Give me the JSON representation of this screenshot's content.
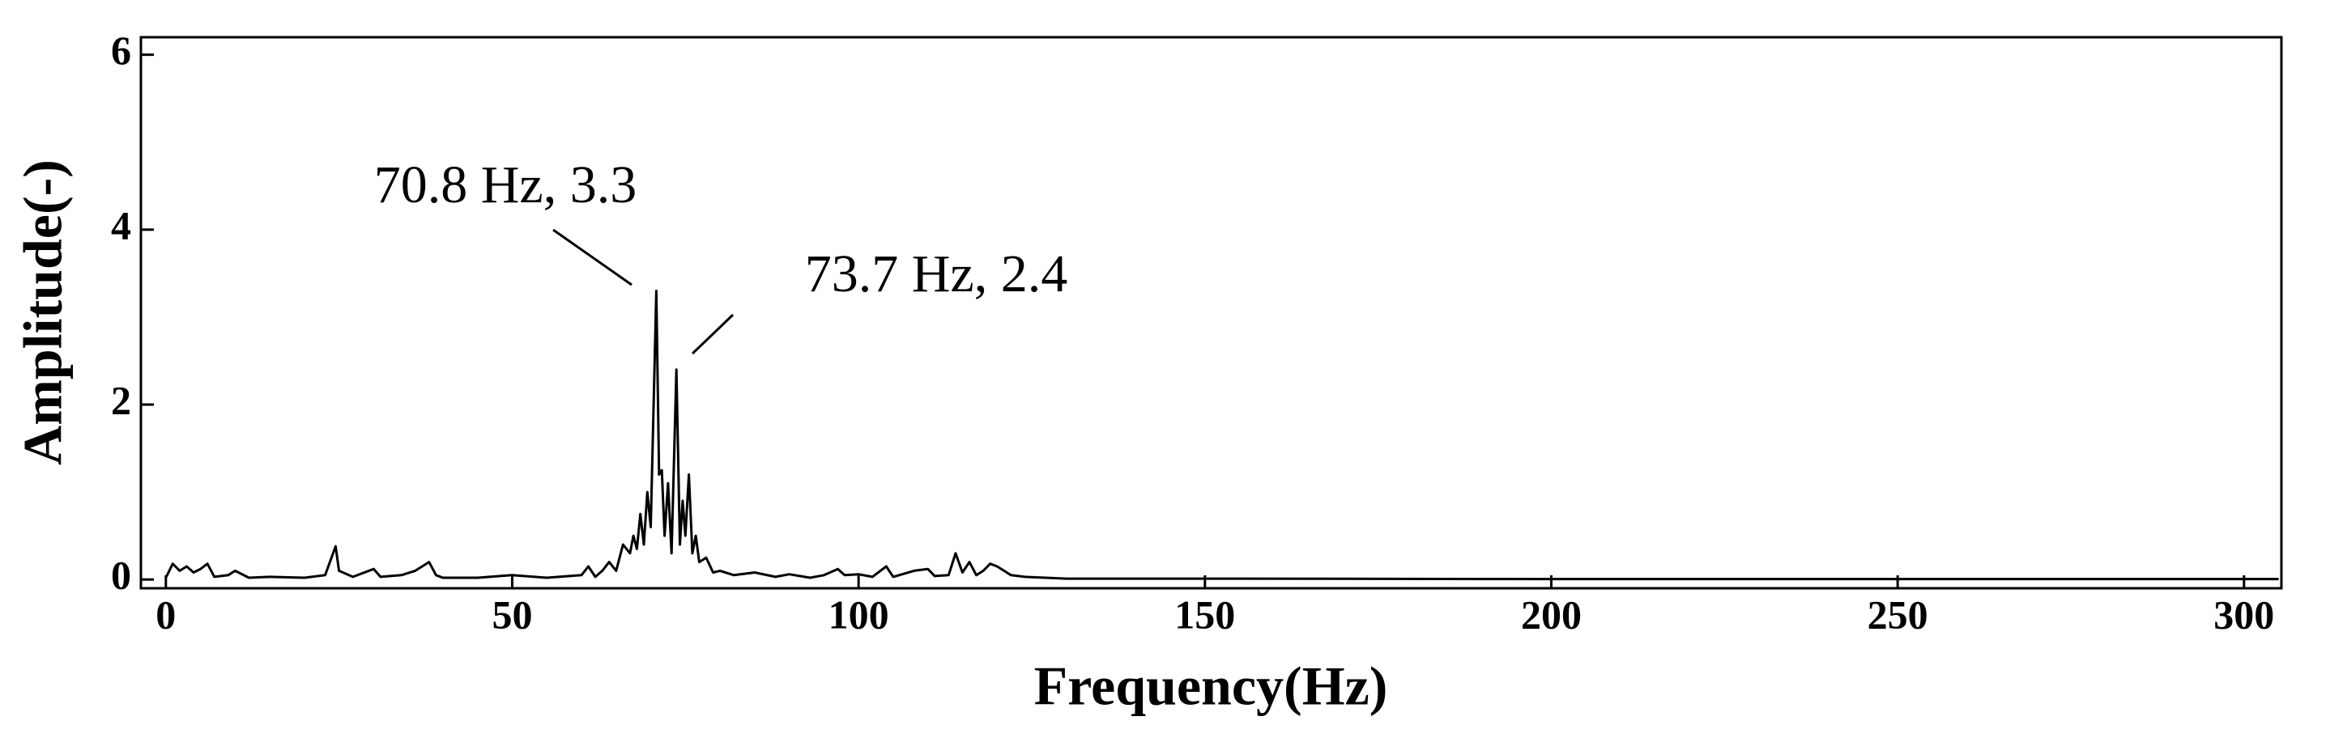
{
  "chart_data": {
    "type": "line",
    "xlabel": "Frequency(Hz)",
    "ylabel": "Amplitude(-)",
    "annotations": [
      "70.8 Hz, 3.3",
      "73.7 Hz, 2.4"
    ],
    "color": "#000000",
    "x": [
      0,
      1,
      2,
      3,
      4,
      5,
      6,
      7,
      9,
      10,
      12,
      15,
      20,
      23,
      24.5,
      25,
      27,
      30,
      31,
      34,
      36,
      38,
      39,
      40,
      45,
      50,
      55,
      60,
      61,
      62,
      63,
      64,
      65,
      66,
      67,
      67.5,
      68,
      68.5,
      69,
      69.5,
      70,
      70.8,
      71.2,
      71.6,
      72,
      72.5,
      73,
      73.7,
      74.2,
      74.6,
      75,
      75.5,
      76,
      76.5,
      77,
      78,
      79,
      80,
      82,
      85,
      88,
      90,
      93,
      95,
      97,
      98,
      100,
      102,
      104,
      105,
      108,
      110,
      111,
      113,
      114,
      115,
      116,
      117,
      118,
      119,
      120,
      121,
      122,
      124,
      127,
      130,
      150,
      200,
      250,
      305
    ],
    "values": [
      0.02,
      0.18,
      0.1,
      0.15,
      0.08,
      0.12,
      0.18,
      0.03,
      0.05,
      0.1,
      0.02,
      0.03,
      0.02,
      0.05,
      0.38,
      0.1,
      0.03,
      0.12,
      0.03,
      0.05,
      0.1,
      0.2,
      0.05,
      0.02,
      0.02,
      0.05,
      0.02,
      0.05,
      0.15,
      0.03,
      0.1,
      0.2,
      0.1,
      0.4,
      0.3,
      0.5,
      0.35,
      0.75,
      0.4,
      1.0,
      0.6,
      3.3,
      1.2,
      1.25,
      0.5,
      1.1,
      0.3,
      2.4,
      0.4,
      0.9,
      0.5,
      1.2,
      0.3,
      0.5,
      0.2,
      0.25,
      0.08,
      0.1,
      0.05,
      0.08,
      0.03,
      0.06,
      0.02,
      0.05,
      0.12,
      0.05,
      0.06,
      0.03,
      0.15,
      0.03,
      0.1,
      0.12,
      0.04,
      0.05,
      0.3,
      0.08,
      0.2,
      0.05,
      0.1,
      0.18,
      0.15,
      0.1,
      0.05,
      0.03,
      0.02,
      0.01,
      0.01,
      0.005,
      0.005,
      0.005
    ],
    "xlim": [
      -3.6,
      305.4
    ],
    "xticks": [
      0,
      50,
      100,
      150,
      200,
      250,
      300
    ],
    "ylim": [
      -0.1,
      6.2
    ],
    "yticks": [
      0,
      2,
      4,
      6
    ]
  }
}
